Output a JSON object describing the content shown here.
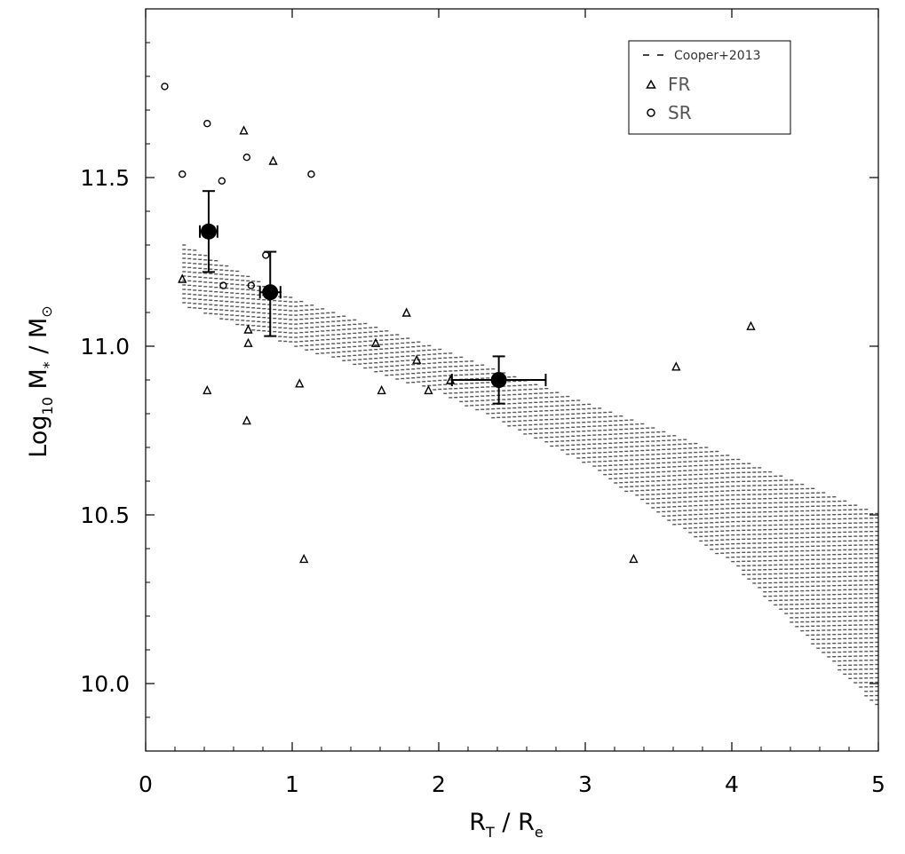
{
  "chart_data": {
    "type": "scatter",
    "title": "",
    "xlabel": {
      "main": "R",
      "sub1": "T",
      "sep": " / ",
      "main2": "R",
      "sub2": "e"
    },
    "ylabel": {
      "pre": "Log",
      "sub": "10",
      "mid": " M",
      "sup": "*",
      "post": " / M",
      "sun": "⊙"
    },
    "xlim": [
      0,
      5
    ],
    "ylim": [
      9.8,
      12.0
    ],
    "xticks": [
      0,
      1,
      2,
      3,
      4,
      5
    ],
    "xtick_labels": [
      "0",
      "1",
      "2",
      "3",
      "4",
      "5"
    ],
    "yticks": [
      10.0,
      10.5,
      11.0,
      11.5
    ],
    "ytick_labels": [
      "10.0",
      "10.5",
      "11.0",
      "11.5"
    ],
    "grid": false,
    "legend_position": "top-right",
    "legend": {
      "band": "Cooper+2013",
      "fr": "FR",
      "sr": "SR"
    },
    "band": {
      "name": "Cooper+2013",
      "color": "#555555",
      "x": [
        0.25,
        1.0,
        2.0,
        3.0,
        4.0,
        5.0
      ],
      "upper": [
        11.3,
        11.14,
        10.99,
        10.83,
        10.67,
        10.5
      ],
      "lower": [
        11.12,
        11.0,
        10.86,
        10.65,
        10.35,
        9.92
      ]
    },
    "series": [
      {
        "name": "FR",
        "marker": "triangle",
        "x": [
          0.25,
          0.42,
          0.67,
          0.69,
          0.7,
          0.7,
          0.87,
          1.05,
          1.08,
          1.57,
          1.61,
          1.78,
          1.85,
          1.93,
          2.08,
          3.33,
          3.62,
          4.13
        ],
        "y": [
          11.2,
          10.87,
          11.64,
          10.78,
          11.05,
          11.01,
          11.55,
          10.89,
          10.37,
          11.01,
          10.87,
          11.1,
          10.96,
          10.87,
          10.9,
          10.37,
          10.94,
          11.06
        ]
      },
      {
        "name": "SR",
        "marker": "circle",
        "x": [
          0.13,
          0.25,
          0.42,
          0.52,
          0.53,
          0.69,
          0.72,
          0.82,
          1.13
        ],
        "y": [
          11.77,
          11.51,
          11.66,
          11.49,
          11.18,
          11.56,
          11.18,
          11.27,
          11.51
        ]
      },
      {
        "name": "",
        "marker": "filled-circle",
        "x": [
          0.43,
          0.85,
          2.41
        ],
        "y": [
          11.34,
          11.16,
          10.9
        ],
        "xerr": [
          0.06,
          0.07,
          0.32
        ],
        "yerr_low": [
          0.12,
          0.13,
          0.07
        ],
        "yerr_high": [
          0.12,
          0.12,
          0.07
        ]
      }
    ]
  }
}
